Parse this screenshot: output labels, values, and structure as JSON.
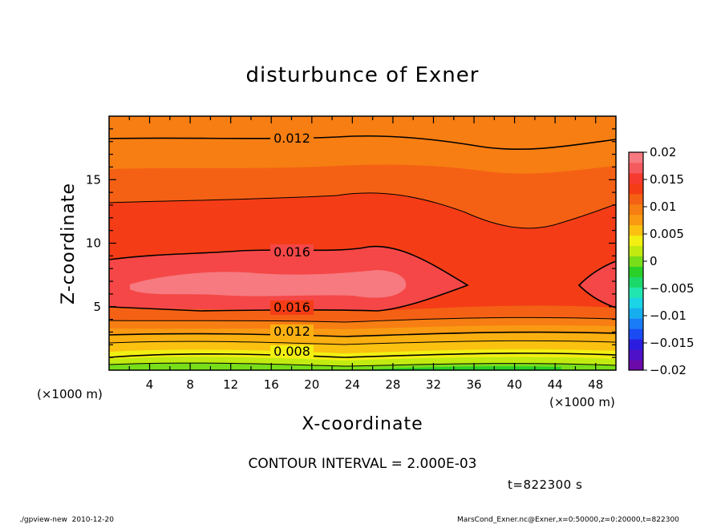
{
  "chart_data": {
    "type": "heatmap",
    "title": "disturbunce of Exner",
    "xlabel": "X-coordinate",
    "ylabel": "Z-coordinate",
    "x_unit": "(×1000 m)",
    "x_unit_right": "(×1000 m)",
    "xlim": [
      0,
      50
    ],
    "ylim": [
      0,
      20
    ],
    "x_ticks": [
      "4",
      "8",
      "12",
      "16",
      "20",
      "24",
      "28",
      "32",
      "36",
      "40",
      "44",
      "48"
    ],
    "y_ticks": [
      "5",
      "10",
      "15"
    ],
    "contour_interval_text": "CONTOUR INTERVAL = 2.000E-03",
    "time_text": "t=822300 s",
    "contour_labels": [
      {
        "text": "0.012",
        "x": 18,
        "z": 18.2
      },
      {
        "text": "0.016",
        "x": 18,
        "z": 9.4
      },
      {
        "text": "0.016",
        "x": 18,
        "z": 4.9
      },
      {
        "text": "0.012",
        "x": 18,
        "z": 3.0
      },
      {
        "text": "0.008",
        "x": 18,
        "z": 1.5
      }
    ],
    "colorbar": {
      "range": [
        -0.02,
        0.02
      ],
      "labels": [
        "0.02",
        "0.015",
        "0.01",
        "0.005",
        "0",
        "−0.005",
        "−0.01",
        "−0.015",
        "−0.02"
      ],
      "colors": [
        "#6a0aa8",
        "#4e11c7",
        "#2b1de0",
        "#1b4cf3",
        "#1a7cf6",
        "#17aef0",
        "#1bd4e6",
        "#21e6b0",
        "#1cd86a",
        "#2ad027",
        "#78de19",
        "#c1ea10",
        "#f2ef12",
        "#fbc110",
        "#f99a12",
        "#f77e12",
        "#f56114",
        "#f43d16",
        "#f63a30",
        "#f55a5e",
        "#f67a80"
      ]
    },
    "field_levels": [
      {
        "color": "#f77e12",
        "value_range": [
          0.012,
          0.014
        ]
      },
      {
        "color": "#f56114",
        "value_range": [
          0.014,
          0.016
        ]
      },
      {
        "color": "#f43d16",
        "value_range": [
          0.016,
          0.018
        ]
      },
      {
        "color": "#f54747",
        "value_range": [
          0.018,
          0.019
        ]
      },
      {
        "color": "#f67a80",
        "value_range": [
          0.019,
          0.02
        ]
      }
    ]
  },
  "footer": {
    "left": "./gpview-new  2010-12-20",
    "right": "MarsCond_Exner.nc@Exner,x=0:50000,z=0:20000,t=822300"
  }
}
